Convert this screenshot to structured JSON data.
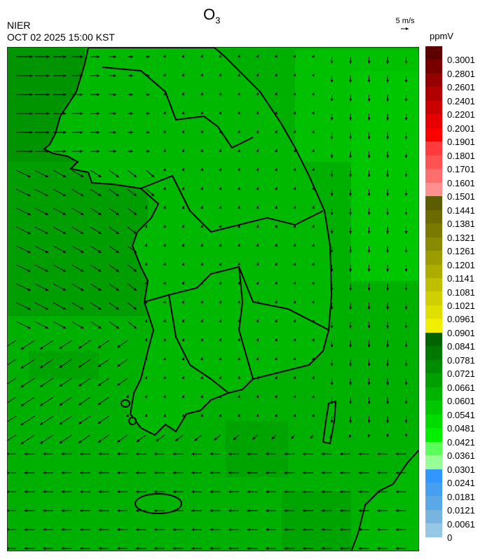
{
  "header": {
    "title_main": "O",
    "title_sub": "3",
    "source": "NIER",
    "timestamp": "OCT 02 2025 15:00 KST",
    "vector_scale_label": "5 m/s",
    "vector_scale_icon": "right-arrow-icon"
  },
  "map": {
    "variable": "O3",
    "background_color": "#00b000",
    "features": [
      "wind-vectors",
      "coastlines",
      "province-boundaries",
      "district-boundaries"
    ]
  },
  "legend": {
    "unit": "ppmV",
    "colors": [
      "#5e0000",
      "#7a0000",
      "#960000",
      "#b00000",
      "#cc0000",
      "#e60000",
      "#ff0000",
      "#ff3b3b",
      "#ff5252",
      "#ff6e6e",
      "#ff9090",
      "#5c5c00",
      "#6b6b00",
      "#7a7a00",
      "#8a8a00",
      "#9c9c00",
      "#adad00",
      "#bfbf00",
      "#d0d000",
      "#e0e000",
      "#f0f000",
      "#006400",
      "#007800",
      "#008c00",
      "#00a000",
      "#00b400",
      "#00c800",
      "#00dc00",
      "#00f000",
      "#5aff5a",
      "#96ff96",
      "#3296ff",
      "#46a0f0",
      "#5aa8e6",
      "#78b4e0",
      "#96c8e6"
    ],
    "labels": [
      "0.3001",
      "0.2801",
      "0.2601",
      "0.2401",
      "0.2201",
      "0.2001",
      "0.1901",
      "0.1801",
      "0.1701",
      "0.1601",
      "0.1501",
      "0.1441",
      "0.1381",
      "0.1321",
      "0.1261",
      "0.1201",
      "0.1141",
      "0.1081",
      "0.1021",
      "0.0961",
      "0.0901",
      "0.0841",
      "0.0781",
      "0.0721",
      "0.0661",
      "0.0601",
      "0.0541",
      "0.0481",
      "0.0421",
      "0.0361",
      "0.0301",
      "0.0241",
      "0.0181",
      "0.0121",
      "0.0061",
      "0"
    ]
  }
}
